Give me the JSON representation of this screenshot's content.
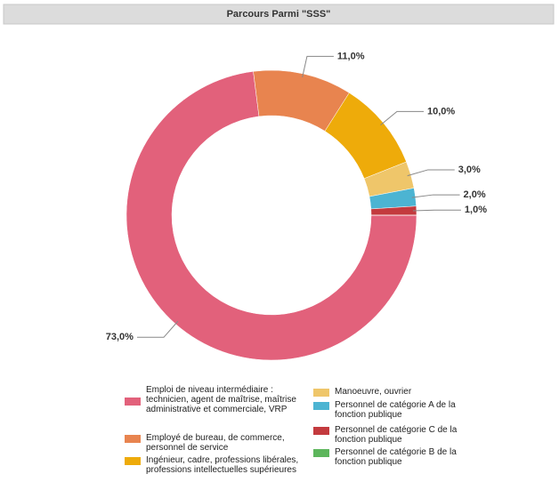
{
  "chart_data": {
    "type": "pie",
    "title": "Parcours Parmi \"SSS\"",
    "categories": [
      "Emploi de niveau intermédiaire : technicien, agent de maîtrise, maîtrise administrative et commerciale,  VRP",
      "Employé de bureau, de commerce, personnel de service",
      "Ingénieur, cadre, professions libérales, professions intellectuelles supérieures",
      "Manoeuvre, ouvrier",
      "Personnel de catégorie A de la fonction publique",
      "Personnel de catégorie C de la fonction publique",
      "Personnel de catégorie B de la fonction publique"
    ],
    "values": [
      73,
      11,
      10,
      3,
      2,
      1,
      0
    ],
    "value_labels": [
      "73,0%",
      "11,0%",
      "10,0%",
      "3,0%",
      "2,0%",
      "1,0%",
      null
    ],
    "colors": [
      "#e2617b",
      "#e8844f",
      "#eeab0a",
      "#efc66a",
      "#4cb4d2",
      "#c33a3e",
      "#5db65c"
    ],
    "donut": true
  }
}
